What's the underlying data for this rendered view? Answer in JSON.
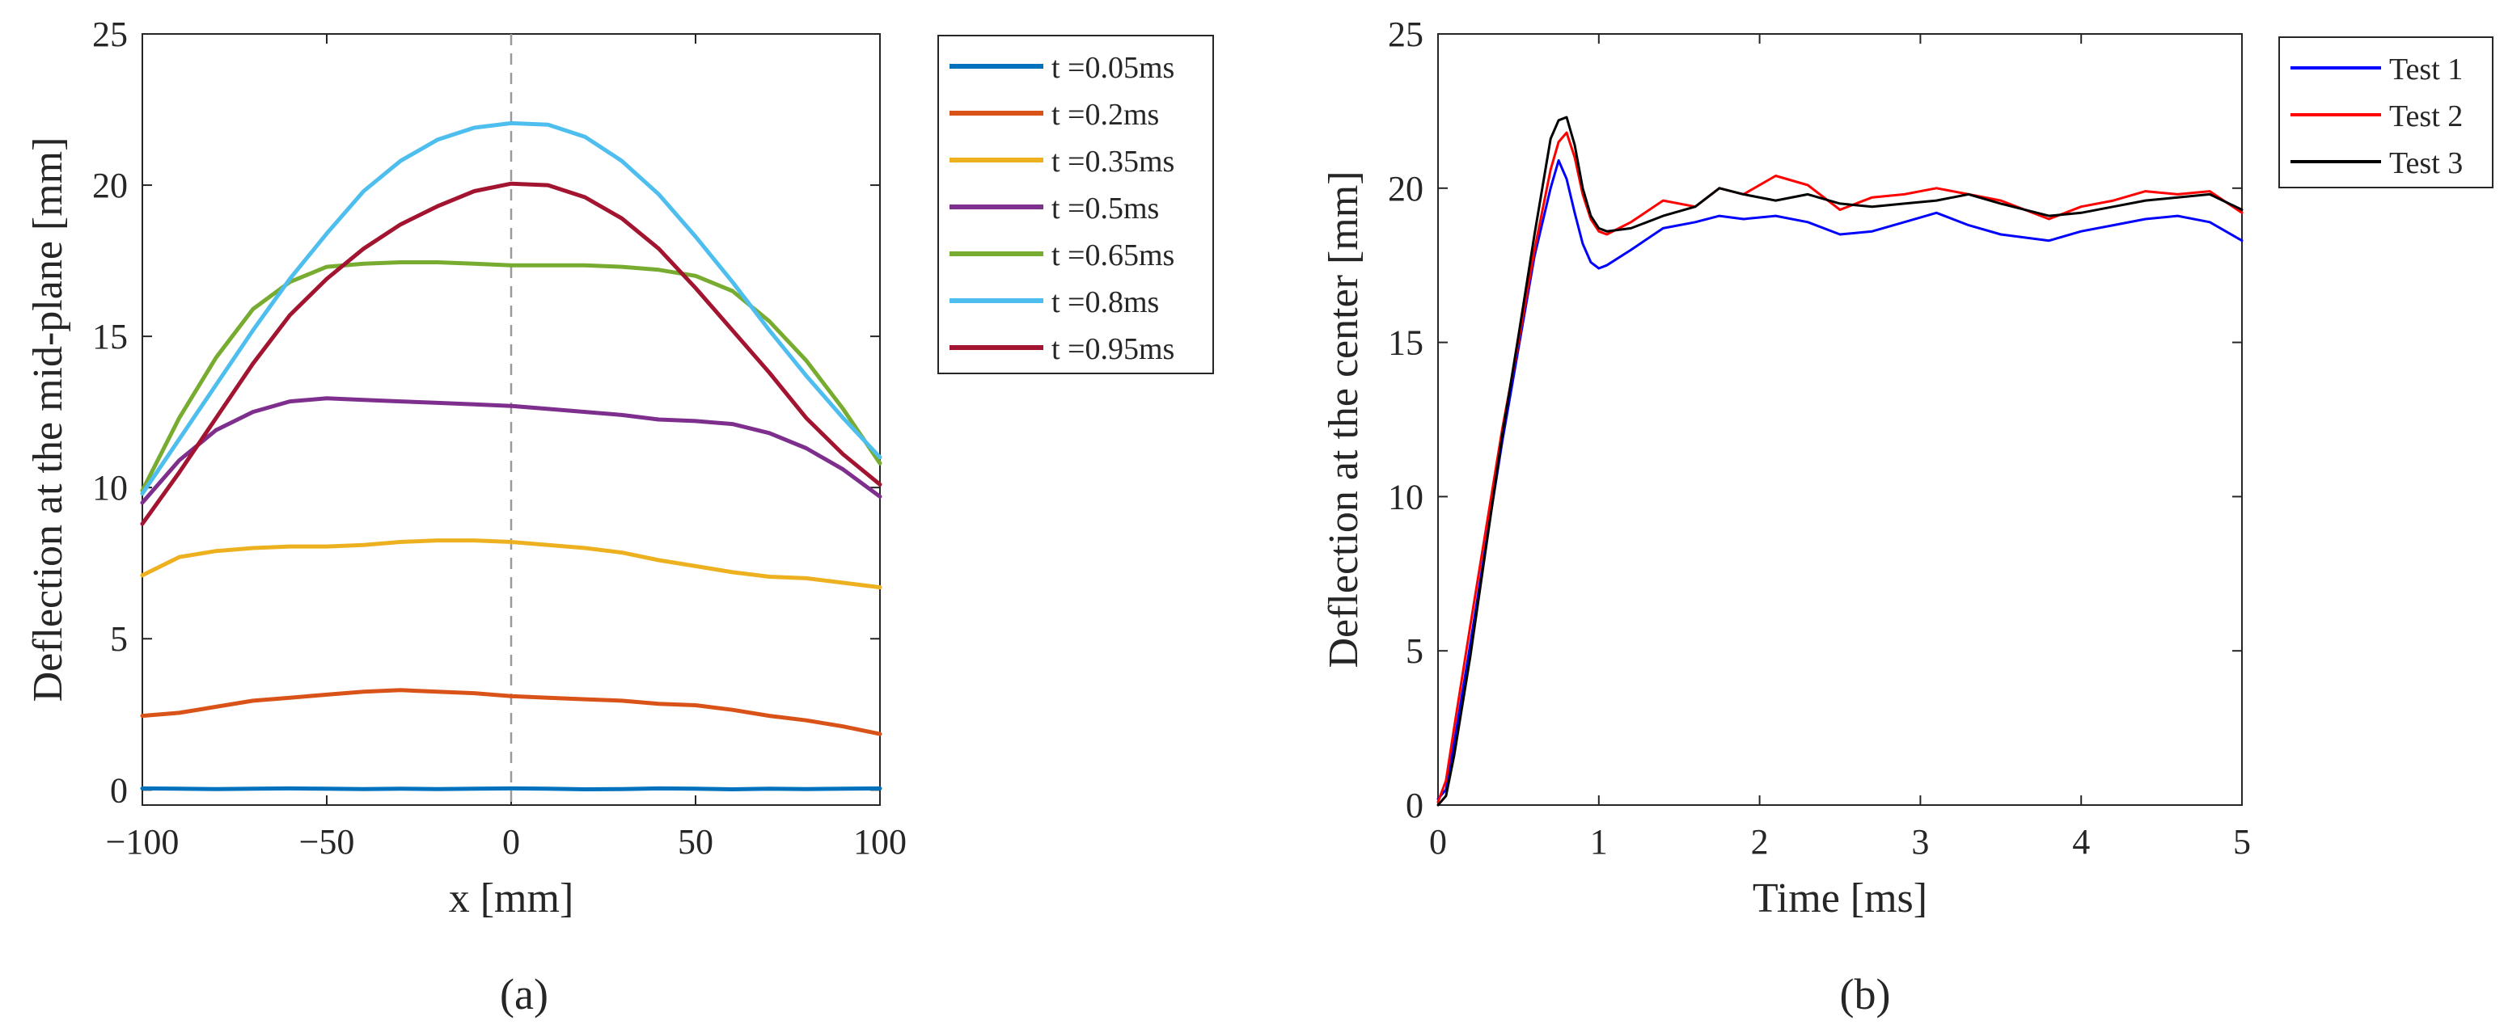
{
  "chart_data": [
    {
      "type": "line",
      "caption": "(a)",
      "xlabel": "x [mm]",
      "ylabel": "Deflection at the mid-plane [mm]",
      "xlim": [
        -100,
        100
      ],
      "ylim": [
        -0.5,
        25
      ],
      "xticks": [
        -100,
        -50,
        0,
        50,
        100
      ],
      "yticks": [
        0,
        5,
        10,
        15,
        20,
        25
      ],
      "xtick_labels": [
        "−100",
        "−50",
        "0",
        "50",
        "100"
      ],
      "ytick_labels": [
        "0",
        "5",
        "10",
        "15",
        "20",
        "25"
      ],
      "reference_line": {
        "x": 0,
        "style": "dashed"
      },
      "legend_position": "outside-right-top",
      "x": [
        -100,
        -90,
        -80,
        -70,
        -60,
        -50,
        -40,
        -30,
        -20,
        -10,
        0,
        10,
        20,
        30,
        40,
        50,
        60,
        70,
        80,
        90,
        100
      ],
      "series": [
        {
          "name": "t =0.05ms",
          "color": "#0072BD",
          "values": [
            0.05,
            0.04,
            0.03,
            0.04,
            0.05,
            0.04,
            0.03,
            0.04,
            0.03,
            0.04,
            0.05,
            0.04,
            0.02,
            0.03,
            0.05,
            0.04,
            0.02,
            0.04,
            0.03,
            0.04,
            0.05
          ]
        },
        {
          "name": "t =0.2ms",
          "color": "#D95319",
          "values": [
            2.45,
            2.55,
            2.75,
            2.95,
            3.05,
            3.15,
            3.25,
            3.3,
            3.25,
            3.2,
            3.1,
            3.05,
            3.0,
            2.95,
            2.85,
            2.8,
            2.65,
            2.45,
            2.3,
            2.1,
            1.85
          ]
        },
        {
          "name": "t =0.35ms",
          "color": "#EDB120",
          "values": [
            7.1,
            7.7,
            7.9,
            8.0,
            8.05,
            8.05,
            8.1,
            8.2,
            8.25,
            8.25,
            8.2,
            8.1,
            8.0,
            7.85,
            7.6,
            7.4,
            7.2,
            7.05,
            7.0,
            6.85,
            6.7
          ]
        },
        {
          "name": "t =0.5ms",
          "color": "#7E2F8E",
          "values": [
            9.5,
            10.9,
            11.9,
            12.5,
            12.85,
            12.95,
            12.9,
            12.85,
            12.8,
            12.75,
            12.7,
            12.6,
            12.5,
            12.4,
            12.25,
            12.2,
            12.1,
            11.8,
            11.3,
            10.6,
            9.7
          ]
        },
        {
          "name": "t =0.65ms",
          "color": "#77AC30",
          "values": [
            9.9,
            12.3,
            14.3,
            15.9,
            16.8,
            17.3,
            17.4,
            17.45,
            17.45,
            17.4,
            17.35,
            17.35,
            17.35,
            17.3,
            17.2,
            17.0,
            16.5,
            15.5,
            14.2,
            12.6,
            10.8
          ]
        },
        {
          "name": "t =0.8ms",
          "color": "#4DBEEE",
          "values": [
            9.8,
            11.6,
            13.4,
            15.2,
            16.9,
            18.4,
            19.8,
            20.8,
            21.5,
            21.9,
            22.05,
            22.0,
            21.6,
            20.8,
            19.7,
            18.3,
            16.8,
            15.2,
            13.7,
            12.3,
            11.0
          ]
        },
        {
          "name": "t =0.95ms",
          "color": "#A2142F",
          "values": [
            8.8,
            10.5,
            12.3,
            14.1,
            15.7,
            16.9,
            17.9,
            18.7,
            19.3,
            19.8,
            20.05,
            20.0,
            19.6,
            18.9,
            17.9,
            16.6,
            15.2,
            13.8,
            12.3,
            11.1,
            10.1
          ]
        }
      ]
    },
    {
      "type": "line",
      "caption": "(b)",
      "xlabel": "Time [ms]",
      "ylabel": "Deflection at the center [mm]",
      "xlim": [
        0,
        5
      ],
      "ylim": [
        0,
        25
      ],
      "xticks": [
        0,
        1,
        2,
        3,
        4,
        5
      ],
      "yticks": [
        0,
        5,
        10,
        15,
        20,
        25
      ],
      "xtick_labels": [
        "0",
        "1",
        "2",
        "3",
        "4",
        "5"
      ],
      "ytick_labels": [
        "0",
        "5",
        "10",
        "15",
        "20",
        "25"
      ],
      "legend_position": "outside-right-top",
      "series": [
        {
          "name": "Test 1",
          "color": "#0000FF",
          "x": [
            0,
            0.05,
            0.1,
            0.2,
            0.3,
            0.4,
            0.5,
            0.6,
            0.7,
            0.75,
            0.8,
            0.85,
            0.9,
            0.95,
            1.0,
            1.05,
            1.2,
            1.4,
            1.6,
            1.75,
            1.9,
            2.1,
            2.3,
            2.5,
            2.7,
            2.9,
            3.1,
            3.3,
            3.5,
            3.8,
            4.0,
            4.2,
            4.4,
            4.6,
            4.8,
            5.0
          ],
          "values": [
            0.2,
            0.5,
            2.0,
            5.2,
            8.5,
            11.8,
            14.8,
            17.8,
            20.0,
            20.9,
            20.3,
            19.2,
            18.2,
            17.6,
            17.4,
            17.5,
            18.0,
            18.7,
            18.9,
            19.1,
            19.0,
            19.1,
            18.9,
            18.5,
            18.6,
            18.9,
            19.2,
            18.8,
            18.5,
            18.3,
            18.6,
            18.8,
            19.0,
            19.1,
            18.9,
            18.3
          ]
        },
        {
          "name": "Test 2",
          "color": "#FF0000",
          "x": [
            0,
            0.05,
            0.1,
            0.2,
            0.3,
            0.4,
            0.5,
            0.6,
            0.7,
            0.75,
            0.8,
            0.85,
            0.9,
            0.95,
            1.0,
            1.05,
            1.2,
            1.4,
            1.6,
            1.75,
            1.9,
            2.1,
            2.3,
            2.5,
            2.7,
            2.9,
            3.1,
            3.3,
            3.5,
            3.8,
            4.0,
            4.2,
            4.4,
            4.6,
            4.8,
            5.0
          ],
          "values": [
            0.1,
            0.8,
            2.5,
            5.8,
            9.0,
            12.2,
            15.0,
            18.0,
            20.6,
            21.5,
            21.8,
            21.0,
            19.8,
            19.0,
            18.6,
            18.5,
            18.9,
            19.6,
            19.4,
            20.0,
            19.8,
            20.4,
            20.1,
            19.3,
            19.7,
            19.8,
            20.0,
            19.8,
            19.6,
            19.0,
            19.4,
            19.6,
            19.9,
            19.8,
            19.9,
            19.2
          ]
        },
        {
          "name": "Test 3",
          "color": "#000000",
          "x": [
            0,
            0.05,
            0.1,
            0.2,
            0.3,
            0.4,
            0.5,
            0.6,
            0.7,
            0.75,
            0.8,
            0.85,
            0.9,
            0.95,
            1.0,
            1.05,
            1.2,
            1.4,
            1.6,
            1.75,
            1.9,
            2.1,
            2.3,
            2.5,
            2.7,
            2.9,
            3.1,
            3.3,
            3.5,
            3.8,
            4.0,
            4.2,
            4.4,
            4.6,
            4.8,
            5.0
          ],
          "values": [
            0.0,
            0.3,
            1.6,
            4.8,
            8.4,
            12.0,
            15.2,
            18.5,
            21.6,
            22.2,
            22.3,
            21.4,
            20.0,
            19.1,
            18.7,
            18.6,
            18.7,
            19.1,
            19.4,
            20.0,
            19.8,
            19.6,
            19.8,
            19.5,
            19.4,
            19.5,
            19.6,
            19.8,
            19.5,
            19.1,
            19.2,
            19.4,
            19.6,
            19.7,
            19.8,
            19.3
          ]
        }
      ]
    }
  ]
}
